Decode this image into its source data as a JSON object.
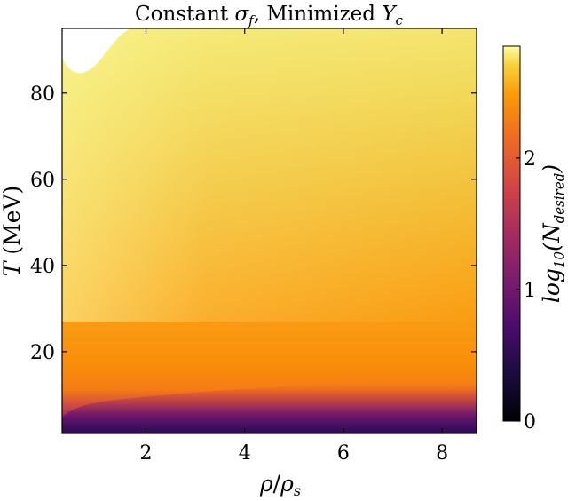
{
  "chart_data": {
    "type": "heatmap",
    "title": "Constant σ_f, Minimized Y_c",
    "title_parts": {
      "t1": "Constant ",
      "sym1": "σ",
      "sub1": "f",
      "t2": ", Minimized ",
      "sym2": "Y",
      "sub2": "c"
    },
    "xlabel_parts": {
      "a": "ρ",
      "sep": "/",
      "b": "ρ",
      "sub": "s"
    },
    "ylabel_parts": {
      "sym": "T",
      "unit": " (MeV)"
    },
    "colorbar_label_parts": {
      "fn": "log",
      "fn_sub": "10",
      "open": "(",
      "sym": "N",
      "sym_sub": "desired",
      "close": ")"
    },
    "xlim": [
      0.3,
      8.7
    ],
    "ylim": [
      1,
      95
    ],
    "xticks": [
      2,
      4,
      6,
      8
    ],
    "yticks": [
      20,
      40,
      60,
      80
    ],
    "colorbar": {
      "colormap": "inferno",
      "vmin": 0,
      "vmax": 2.85,
      "ticks": [
        0,
        1,
        2
      ]
    },
    "grid": false,
    "masked_region": "top-left corner (no data)"
  }
}
